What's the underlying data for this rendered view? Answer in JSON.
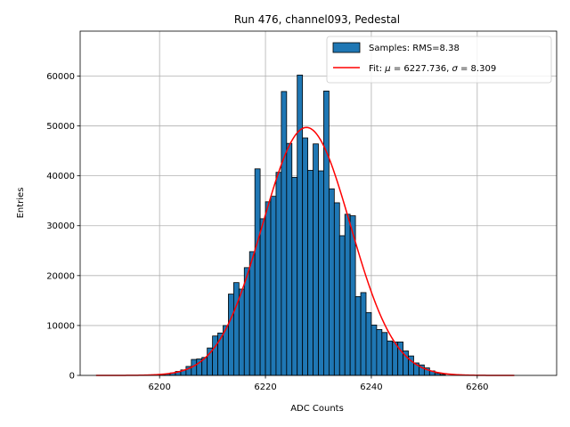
{
  "chart_data": {
    "type": "bar",
    "title": "Run 476, channel093, Pedestal",
    "xlabel": "ADC Counts",
    "ylabel": "Entries",
    "xlim": [
      6185,
      6275
    ],
    "ylim": [
      0,
      69000
    ],
    "x_ticks": [
      6200,
      6220,
      6240,
      6260
    ],
    "y_ticks": [
      0,
      10000,
      20000,
      30000,
      40000,
      50000,
      60000
    ],
    "grid": true,
    "legend_position": "top-right",
    "colors": {
      "bars": "#1f77b4",
      "fit": "#ff0000"
    },
    "legend": {
      "hist_label": "Samples: RMS=8.38",
      "fit_label_prefix": "Fit: ",
      "mu_symbol": "μ",
      "fit_mu": " = 6227.736, ",
      "sigma_symbol": "σ",
      "fit_sigma": " = 8.309"
    },
    "histogram": {
      "bin_start": 6200,
      "bin_width": 1,
      "values": [
        200,
        300,
        500,
        800,
        1100,
        1800,
        3200,
        3300,
        3600,
        5500,
        7900,
        8500,
        10000,
        16300,
        18600,
        17300,
        21600,
        24800,
        41400,
        31400,
        34800,
        35900,
        40700,
        56900,
        46500,
        39700,
        60200,
        47600,
        41100,
        46400,
        41000,
        57000,
        37400,
        34600,
        28000,
        32300,
        32000,
        15800,
        16600,
        12600,
        10100,
        9200,
        8600,
        6900,
        6700,
        6700,
        4900,
        3900,
        2500,
        2100,
        1500,
        900,
        400,
        200
      ]
    },
    "fit": {
      "mu": 6227.736,
      "sigma": 8.309,
      "amplitude": 49700,
      "x_range": [
        6188,
        6267
      ]
    }
  }
}
